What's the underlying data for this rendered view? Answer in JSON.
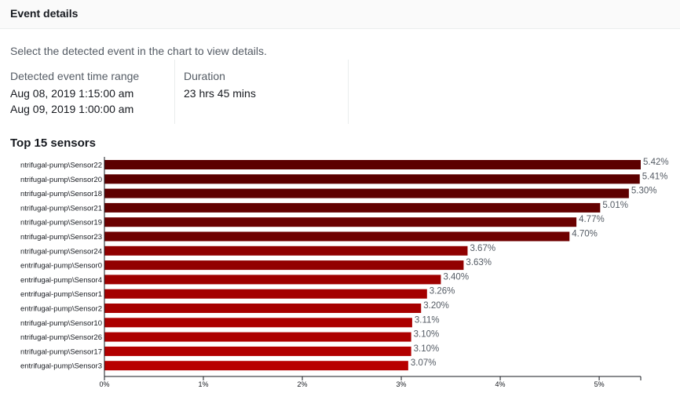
{
  "header": {
    "title": "Event details"
  },
  "instruction": "Select the detected event in the chart to view details.",
  "details": {
    "time_range": {
      "label": "Detected event time range",
      "start": "Aug 08, 2019 1:15:00 am",
      "end": "Aug 09, 2019 1:00:00 am"
    },
    "duration": {
      "label": "Duration",
      "value": "23 hrs 45 mins"
    }
  },
  "chart_data": {
    "type": "bar",
    "orientation": "horizontal",
    "title": "Top 15 sensors",
    "categories": [
      "ntrifugal-pump\\Sensor22",
      "ntrifugal-pump\\Sensor20",
      "ntrifugal-pump\\Sensor18",
      "ntrifugal-pump\\Sensor21",
      "ntrifugal-pump\\Sensor19",
      "ntrifugal-pump\\Sensor23",
      "ntrifugal-pump\\Sensor24",
      "entrifugal-pump\\Sensor0",
      "entrifugal-pump\\Sensor4",
      "entrifugal-pump\\Sensor1",
      "entrifugal-pump\\Sensor2",
      "ntrifugal-pump\\Sensor10",
      "ntrifugal-pump\\Sensor26",
      "ntrifugal-pump\\Sensor17",
      "entrifugal-pump\\Sensor3"
    ],
    "values": [
      5.42,
      5.41,
      5.3,
      5.01,
      4.77,
      4.7,
      3.67,
      3.63,
      3.4,
      3.26,
      3.2,
      3.11,
      3.1,
      3.1,
      3.07
    ],
    "value_labels": [
      "5.42%",
      "5.41%",
      "5.30%",
      "5.01%",
      "4.77%",
      "4.70%",
      "3.67%",
      "3.63%",
      "3.40%",
      "3.26%",
      "3.20%",
      "3.11%",
      "3.10%",
      "3.10%",
      "3.07%"
    ],
    "xticks": [
      0,
      1,
      2,
      3,
      4,
      5
    ],
    "xtick_labels": [
      "0%",
      "1%",
      "2%",
      "3%",
      "4%",
      "5%"
    ],
    "xlim": [
      0,
      5.42
    ],
    "colors": [
      "#5c0000",
      "#5c0000",
      "#5e0000",
      "#630000",
      "#6b0000",
      "#6f0000",
      "#8f0000",
      "#920000",
      "#9e0000",
      "#a40000",
      "#a70000",
      "#ab0000",
      "#ad0000",
      "#b20000",
      "#b80000"
    ],
    "grid": false
  }
}
